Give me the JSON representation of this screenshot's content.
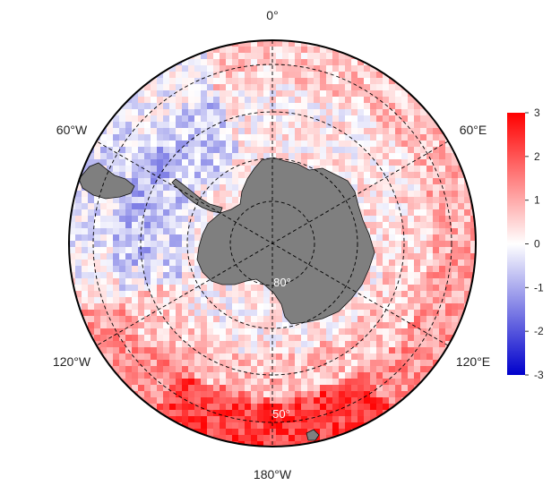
{
  "map": {
    "projection": "south-polar stereographic",
    "longitude_labels": {
      "top": "0°",
      "top_right": "60°E",
      "bottom_right": "120°E",
      "bottom": "180°W",
      "bottom_left": "120°W",
      "top_left": "60°W"
    },
    "latitude_labels": {
      "inner": "80°",
      "outer": "50°"
    },
    "graticule": {
      "parallels": [
        50,
        60,
        70,
        80
      ],
      "meridians_every_deg": 60,
      "style": "dashed"
    },
    "colors": {
      "land": "#7f7f7f",
      "coast": "#111111",
      "ocean_low": "#0000cc",
      "ocean_mid": "#ffffff",
      "ocean_high": "#ff0000"
    },
    "field_description_regions": [
      {
        "region": "outer ring 40-50S",
        "tendency": "positive",
        "approx_value": 1.0
      },
      {
        "region": "Ross / Amundsen sector near 180",
        "tendency": "strong positive",
        "approx_value": 2.0
      },
      {
        "region": "Weddell sector near 30W-60W",
        "tendency": "slightly negative",
        "approx_value": -0.4
      },
      {
        "region": "near Antarctic coast",
        "tendency": "near zero",
        "approx_value": 0.1
      }
    ]
  },
  "colorbar": {
    "ticks": [
      "3",
      "2",
      "1",
      "0",
      "-1",
      "-2",
      "-3"
    ],
    "min": -3,
    "max": 3
  }
}
